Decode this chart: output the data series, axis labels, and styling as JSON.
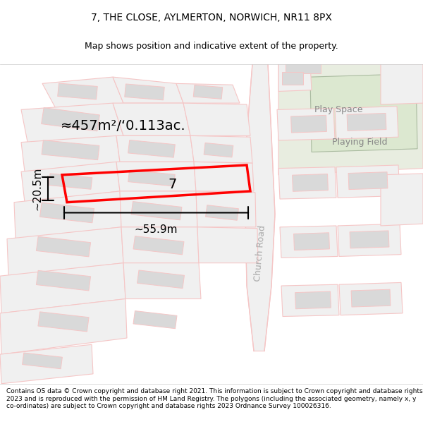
{
  "title_line1": "7, THE CLOSE, AYLMERTON, NORWICH, NR11 8PX",
  "title_line2": "Map shows position and indicative extent of the property.",
  "footer_text": "Contains OS data © Crown copyright and database right 2021. This information is subject to Crown copyright and database rights 2023 and is reproduced with the permission of HM Land Registry. The polygons (including the associated geometry, namely x, y co-ordinates) are subject to Crown copyright and database rights 2023 Ordnance Survey 100026316.",
  "background_color": "#ffffff",
  "map_background": "#f5f5f5",
  "road_color": "#f5c6c6",
  "building_color": "#d9d9d9",
  "green_area_color": "#e8ede0",
  "highlight_polygon_color": "#ff0000",
  "road_label": "Church Road",
  "area_label": "≈457m²/‘0.113ac.",
  "width_label": "∼55.9m",
  "height_label": "∼20.5m",
  "property_number": "7",
  "play_space_label": "Play Space",
  "playing_field_label": "Playing Field"
}
